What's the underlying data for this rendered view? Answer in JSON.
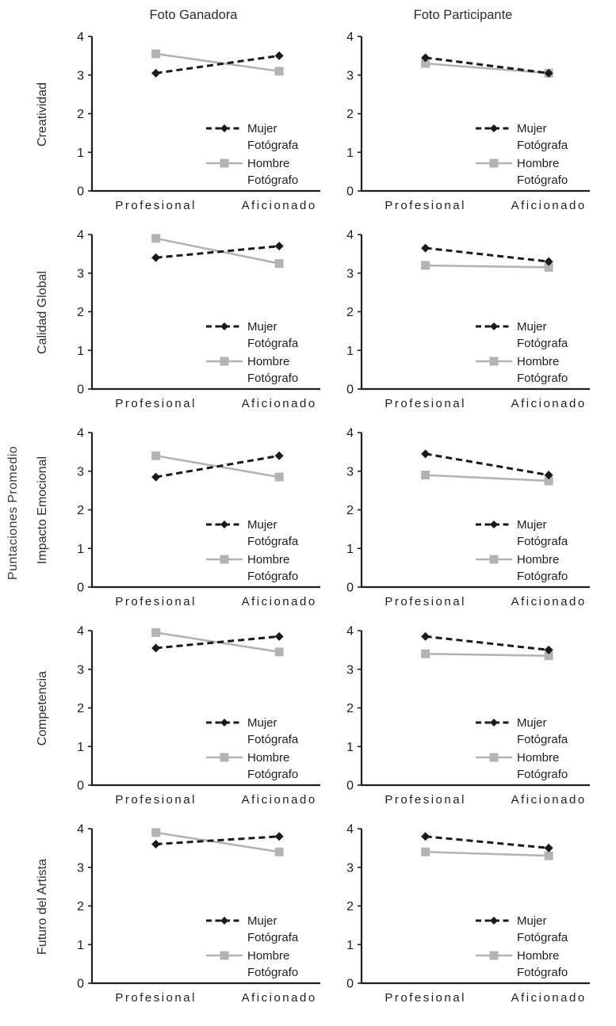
{
  "figure": {
    "y_axis_label": "Puntaciones Promedio",
    "column_titles": [
      "Foto Ganadora",
      "Foto Participante"
    ],
    "row_labels": [
      "Creatividad",
      "Calidad Global",
      "Impacto Emocional",
      "Competencia",
      "Futuro del Artista"
    ],
    "x_categories": [
      "Profesional",
      "Aficionado"
    ],
    "legend": {
      "position": "inside-right",
      "entries": [
        {
          "lines": [
            "Mujer",
            "Fotógrafa"
          ],
          "marker": "diamond",
          "dashed": true
        },
        {
          "lines": [
            "Hombre",
            "Fotógrafo"
          ],
          "marker": "square",
          "dashed": false
        }
      ]
    },
    "colors": {
      "mujer": "#1a1a1a",
      "hombre": "#b3b3b3",
      "axis": "#1f1f1f",
      "text": "#3a3a3a"
    }
  },
  "chart_data": [
    {
      "type": "line",
      "row": "Creatividad",
      "column": "Foto Ganadora",
      "categories": [
        "Profesional",
        "Aficionado"
      ],
      "ylim": [
        0,
        4
      ],
      "yticks": [
        0,
        1,
        2,
        3,
        4
      ],
      "grid": false,
      "series": [
        {
          "name": "Mujer Fotógrafa",
          "marker": "diamond",
          "dashed": true,
          "values": [
            3.05,
            3.5
          ]
        },
        {
          "name": "Hombre Fotógrafo",
          "marker": "square",
          "dashed": false,
          "values": [
            3.55,
            3.1
          ]
        }
      ]
    },
    {
      "type": "line",
      "row": "Creatividad",
      "column": "Foto Participante",
      "categories": [
        "Profesional",
        "Aficionado"
      ],
      "ylim": [
        0,
        4
      ],
      "yticks": [
        0,
        1,
        2,
        3,
        4
      ],
      "grid": false,
      "series": [
        {
          "name": "Mujer Fotógrafa",
          "marker": "diamond",
          "dashed": true,
          "values": [
            3.45,
            3.05
          ]
        },
        {
          "name": "Hombre Fotógrafo",
          "marker": "square",
          "dashed": false,
          "values": [
            3.3,
            3.05
          ]
        }
      ]
    },
    {
      "type": "line",
      "row": "Calidad Global",
      "column": "Foto Ganadora",
      "categories": [
        "Profesional",
        "Aficionado"
      ],
      "ylim": [
        0,
        4
      ],
      "yticks": [
        0,
        1,
        2,
        3,
        4
      ],
      "grid": false,
      "series": [
        {
          "name": "Mujer Fotógrafa",
          "marker": "diamond",
          "dashed": true,
          "values": [
            3.4,
            3.7
          ]
        },
        {
          "name": "Hombre Fotógrafo",
          "marker": "square",
          "dashed": false,
          "values": [
            3.9,
            3.25
          ]
        }
      ]
    },
    {
      "type": "line",
      "row": "Calidad Global",
      "column": "Foto Participante",
      "categories": [
        "Profesional",
        "Aficionado"
      ],
      "ylim": [
        0,
        4
      ],
      "yticks": [
        0,
        1,
        2,
        3,
        4
      ],
      "grid": false,
      "series": [
        {
          "name": "Mujer Fotógrafa",
          "marker": "diamond",
          "dashed": true,
          "values": [
            3.65,
            3.3
          ]
        },
        {
          "name": "Hombre Fotógrafo",
          "marker": "square",
          "dashed": false,
          "values": [
            3.2,
            3.15
          ]
        }
      ]
    },
    {
      "type": "line",
      "row": "Impacto Emocional",
      "column": "Foto Ganadora",
      "categories": [
        "Profesional",
        "Aficionado"
      ],
      "ylim": [
        0,
        4
      ],
      "yticks": [
        0,
        1,
        2,
        3,
        4
      ],
      "grid": false,
      "series": [
        {
          "name": "Mujer Fotógrafa",
          "marker": "diamond",
          "dashed": true,
          "values": [
            2.85,
            3.4
          ]
        },
        {
          "name": "Hombre Fotógrafo",
          "marker": "square",
          "dashed": false,
          "values": [
            3.4,
            2.85
          ]
        }
      ]
    },
    {
      "type": "line",
      "row": "Impacto Emocional",
      "column": "Foto Participante",
      "categories": [
        "Profesional",
        "Aficionado"
      ],
      "ylim": [
        0,
        4
      ],
      "yticks": [
        0,
        1,
        2,
        3,
        4
      ],
      "grid": false,
      "series": [
        {
          "name": "Mujer Fotógrafa",
          "marker": "diamond",
          "dashed": true,
          "values": [
            3.45,
            2.9
          ]
        },
        {
          "name": "Hombre Fotógrafo",
          "marker": "square",
          "dashed": false,
          "values": [
            2.9,
            2.75
          ]
        }
      ]
    },
    {
      "type": "line",
      "row": "Competencia",
      "column": "Foto Ganadora",
      "categories": [
        "Profesional",
        "Aficionado"
      ],
      "ylim": [
        0,
        4
      ],
      "yticks": [
        0,
        1,
        2,
        3,
        4
      ],
      "grid": false,
      "series": [
        {
          "name": "Mujer Fotógrafa",
          "marker": "diamond",
          "dashed": true,
          "values": [
            3.55,
            3.85
          ]
        },
        {
          "name": "Hombre Fotógrafo",
          "marker": "square",
          "dashed": false,
          "values": [
            3.95,
            3.45
          ]
        }
      ]
    },
    {
      "type": "line",
      "row": "Competencia",
      "column": "Foto Participante",
      "categories": [
        "Profesional",
        "Aficionado"
      ],
      "ylim": [
        0,
        4
      ],
      "yticks": [
        0,
        1,
        2,
        3,
        4
      ],
      "grid": false,
      "series": [
        {
          "name": "Mujer Fotógrafa",
          "marker": "diamond",
          "dashed": true,
          "values": [
            3.85,
            3.5
          ]
        },
        {
          "name": "Hombre Fotógrafo",
          "marker": "square",
          "dashed": false,
          "values": [
            3.4,
            3.35
          ]
        }
      ]
    },
    {
      "type": "line",
      "row": "Futuro del Artista",
      "column": "Foto Ganadora",
      "categories": [
        "Profesional",
        "Aficionado"
      ],
      "ylim": [
        0,
        4
      ],
      "yticks": [
        0,
        1,
        2,
        3,
        4
      ],
      "grid": false,
      "series": [
        {
          "name": "Mujer Fotógrafa",
          "marker": "diamond",
          "dashed": true,
          "values": [
            3.6,
            3.8
          ]
        },
        {
          "name": "Hombre Fotógrafo",
          "marker": "square",
          "dashed": false,
          "values": [
            3.9,
            3.4
          ]
        }
      ]
    },
    {
      "type": "line",
      "row": "Futuro del Artista",
      "column": "Foto Participante",
      "categories": [
        "Profesional",
        "Aficionado"
      ],
      "ylim": [
        0,
        4
      ],
      "yticks": [
        0,
        1,
        2,
        3,
        4
      ],
      "grid": false,
      "series": [
        {
          "name": "Mujer Fotógrafa",
          "marker": "diamond",
          "dashed": true,
          "values": [
            3.8,
            3.5
          ]
        },
        {
          "name": "Hombre Fotógrafo",
          "marker": "square",
          "dashed": false,
          "values": [
            3.4,
            3.3
          ]
        }
      ]
    }
  ]
}
